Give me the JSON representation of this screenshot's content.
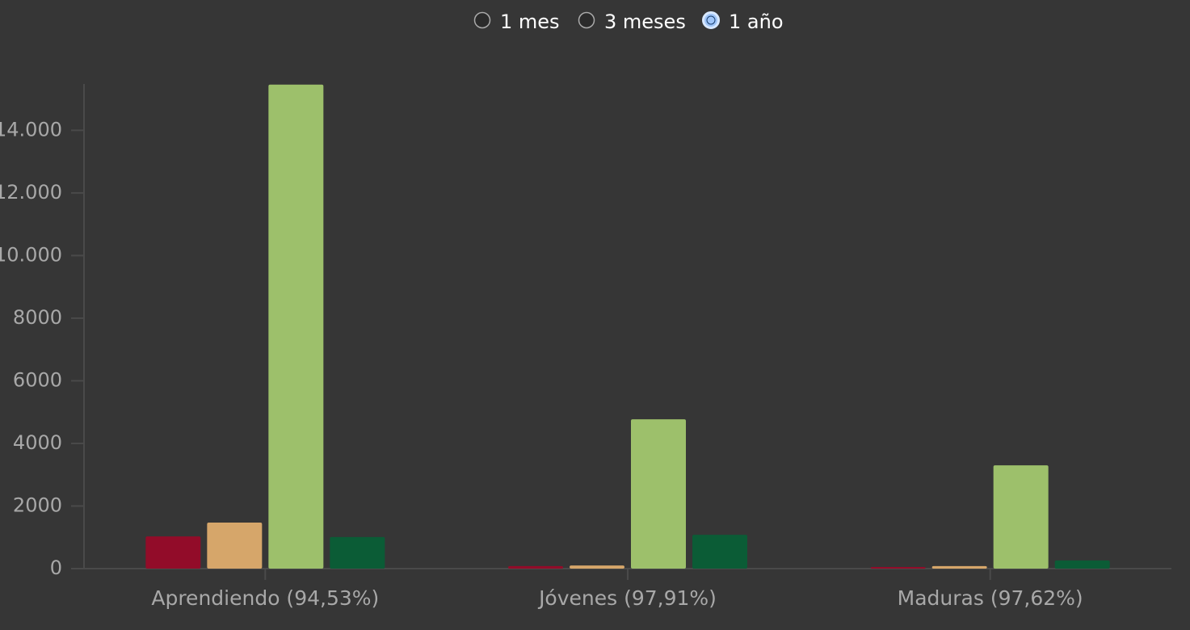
{
  "controls": {
    "options": [
      "1 mes",
      "3 meses",
      "1 año"
    ],
    "selected": "1 año"
  },
  "chart_data": {
    "type": "bar",
    "categories": [
      "Aprendiendo (94,53%)",
      "Jóvenes (97,91%)",
      "Maduras (97,62%)"
    ],
    "series": [
      {
        "color": "#920c29",
        "values": [
          1030,
          80,
          50
        ]
      },
      {
        "color": "#d6a66a",
        "values": [
          1470,
          100,
          80
        ]
      },
      {
        "color": "#9dc06b",
        "values": [
          15460,
          4770,
          3300
        ]
      },
      {
        "color": "#0b5c36",
        "values": [
          1010,
          1080,
          260
        ]
      }
    ],
    "ylim": [
      0,
      15480
    ],
    "yticks": [
      0,
      2000,
      4000,
      6000,
      8000,
      {
        "value": 10000,
        "label": "10.000"
      },
      {
        "value": 12000,
        "label": "12.000"
      },
      {
        "value": 14000,
        "label": "14.000"
      }
    ]
  }
}
